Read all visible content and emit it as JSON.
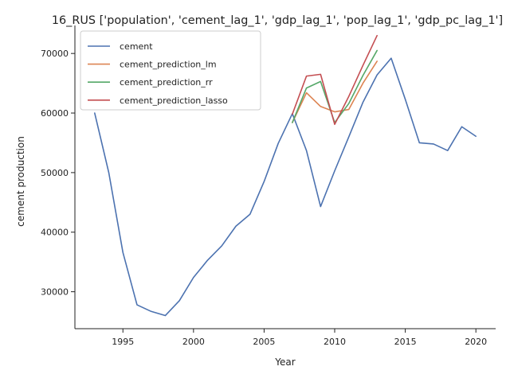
{
  "chart_data": {
    "type": "line",
    "title": "16_RUS ['population', 'cement_lag_1', 'gdp_lag_1', 'pop_lag_1', 'gdp_pc_lag_1']",
    "xlabel": "Year",
    "ylabel": "cement production",
    "xlim": [
      1991.6,
      2021.4
    ],
    "ylim": [
      23800,
      74700
    ],
    "xticks": [
      1995,
      2000,
      2005,
      2010,
      2015,
      2020
    ],
    "xtick_labels": [
      "1995",
      "2000",
      "2005",
      "2010",
      "2015",
      "2020"
    ],
    "yticks": [
      30000,
      40000,
      50000,
      60000,
      70000
    ],
    "ytick_labels": [
      "30000",
      "40000",
      "50000",
      "60000",
      "70000"
    ],
    "grid": false,
    "legend_position": "top-left",
    "series": [
      {
        "name": "cement",
        "color": "#4c72b0",
        "x": [
          1993,
          1994,
          1995,
          1996,
          1997,
          1998,
          1999,
          2000,
          2001,
          2002,
          2003,
          2004,
          2005,
          2006,
          2007,
          2008,
          2009,
          2010,
          2011,
          2012,
          2013,
          2014,
          2015,
          2016,
          2017,
          2018,
          2019,
          2020
        ],
        "values": [
          60000,
          50000,
          36600,
          27800,
          26700,
          26000,
          28500,
          32400,
          35300,
          37700,
          41000,
          43000,
          48500,
          54900,
          59900,
          53700,
          44300,
          50300,
          56000,
          61800,
          66400,
          69200,
          62300,
          55000,
          54800,
          53700,
          57700,
          56100
        ]
      },
      {
        "name": "cement_prediction_lm",
        "color": "#dd8452",
        "x": [
          2007,
          2008,
          2009,
          2010,
          2011,
          2012,
          2013
        ],
        "values": [
          58400,
          63400,
          61100,
          60200,
          60600,
          65000,
          68700
        ]
      },
      {
        "name": "cement_prediction_rr",
        "color": "#55a868",
        "x": [
          2007,
          2008,
          2009,
          2010,
          2011,
          2012,
          2013
        ],
        "values": [
          58400,
          64200,
          65300,
          58400,
          61600,
          66300,
          70500
        ]
      },
      {
        "name": "cement_prediction_lasso",
        "color": "#c44e52",
        "x": [
          2007,
          2008,
          2009,
          2010,
          2011,
          2012,
          2013
        ],
        "values": [
          59800,
          66200,
          66500,
          58100,
          62800,
          68000,
          73000
        ]
      }
    ]
  }
}
